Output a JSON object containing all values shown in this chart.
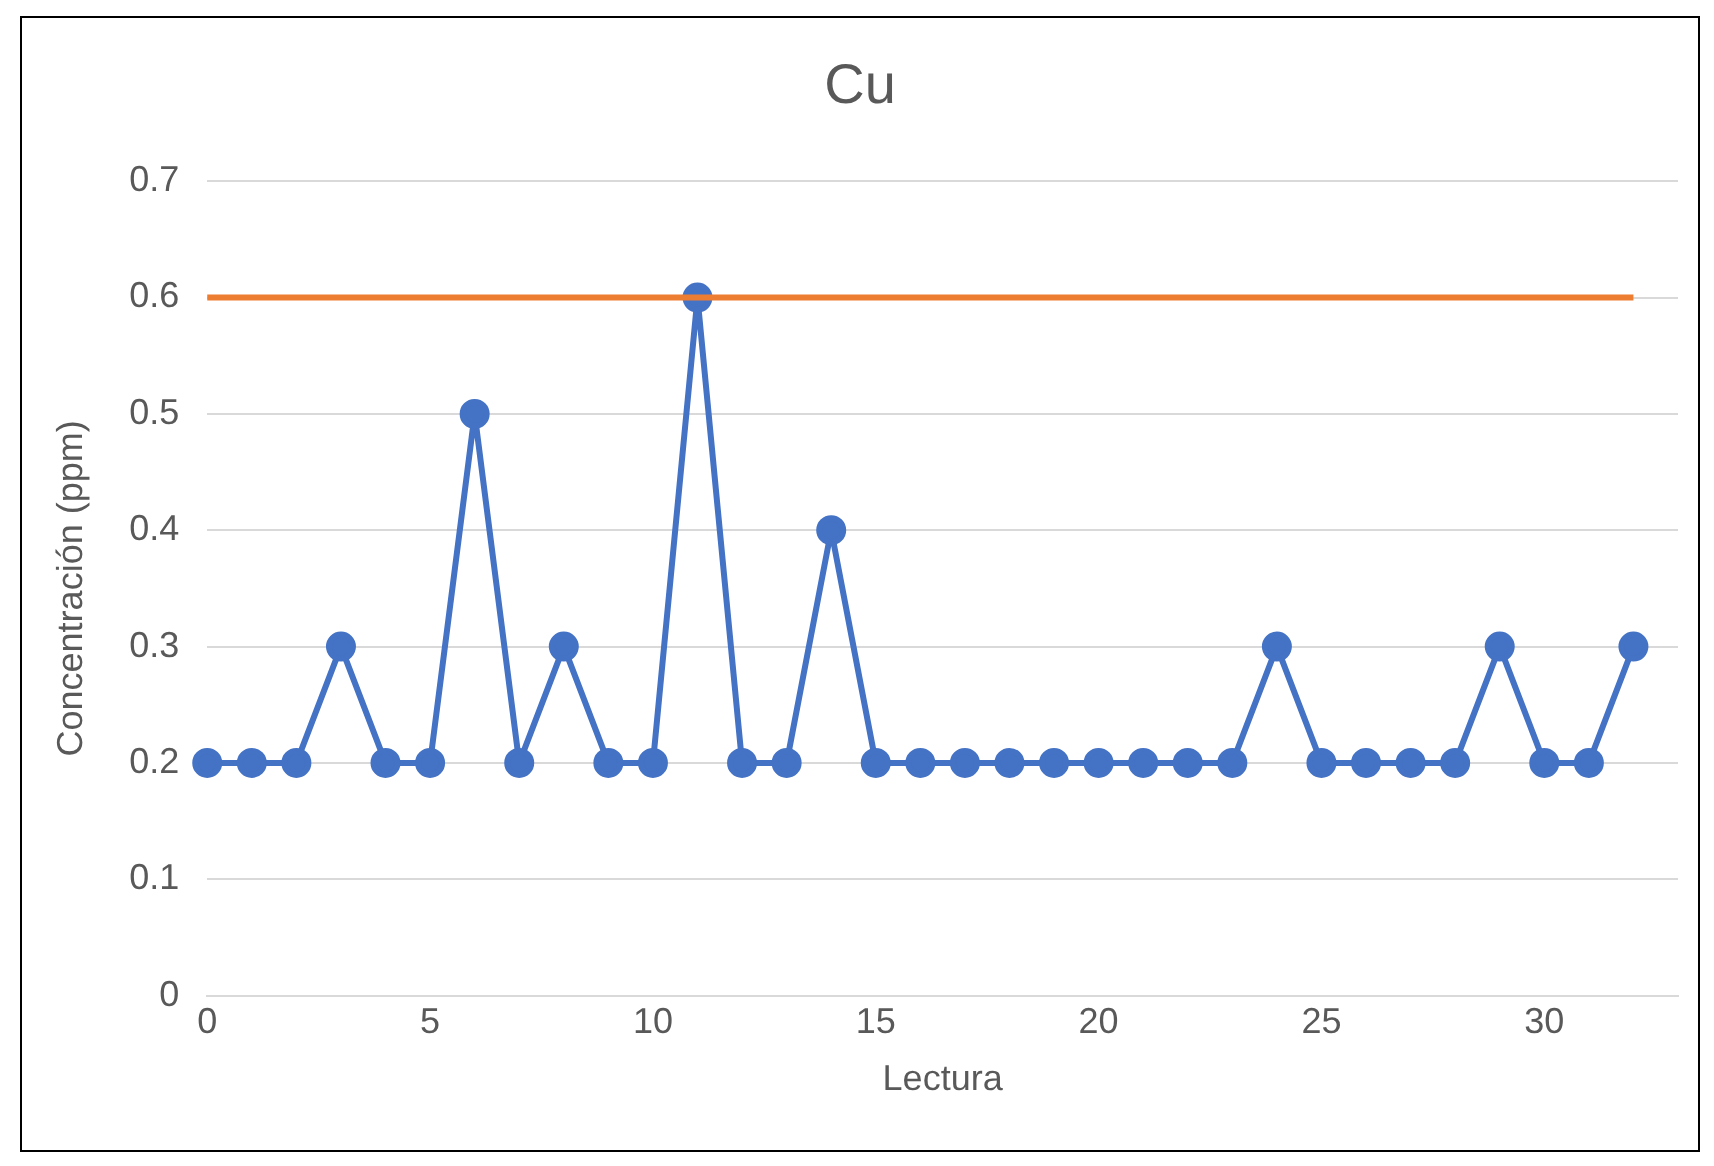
{
  "chart_data": {
    "type": "line",
    "title": "Cu",
    "xlabel": "Lectura",
    "ylabel": "Concentración (ppm)",
    "x": [
      0,
      1,
      2,
      3,
      4,
      5,
      6,
      7,
      8,
      9,
      10,
      11,
      12,
      13,
      14,
      15,
      16,
      17,
      18,
      19,
      20,
      21,
      22,
      23,
      24,
      25,
      26,
      27,
      28,
      29,
      30,
      31,
      32
    ],
    "series": [
      {
        "color": "#4472c4",
        "values": [
          0.2,
          0.2,
          0.2,
          0.3,
          0.2,
          0.2,
          0.5,
          0.2,
          0.3,
          0.2,
          0.2,
          0.6,
          0.2,
          0.2,
          0.4,
          0.2,
          0.2,
          0.2,
          0.2,
          0.2,
          0.2,
          0.2,
          0.2,
          0.2,
          0.3,
          0.2,
          0.2,
          0.2,
          0.2,
          0.3,
          0.2,
          0.2,
          0.3
        ]
      },
      {
        "type": "line",
        "color": "#ed7d31",
        "x": [
          0,
          32
        ],
        "values": [
          0.6,
          0.6
        ],
        "marker": "none"
      }
    ],
    "xlim": [
      0,
      33
    ],
    "xticks": [
      0,
      5,
      10,
      15,
      20,
      25,
      30
    ],
    "ylim": [
      0,
      0.7
    ],
    "yticks": [
      0,
      0.1,
      0.2,
      0.3,
      0.4,
      0.5,
      0.6,
      0.7
    ],
    "grid": "y",
    "legend": false,
    "marker": "circle",
    "line_style": "solid"
  }
}
